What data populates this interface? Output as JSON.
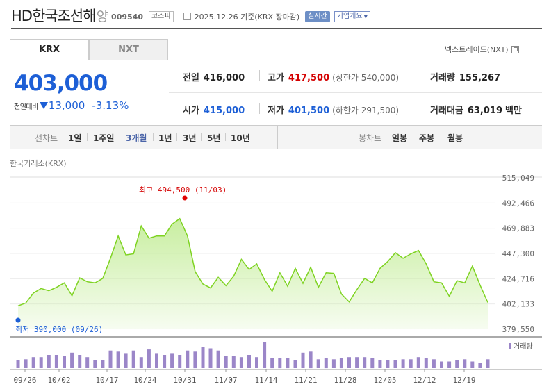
{
  "header": {
    "name": "HD한국조선해",
    "name_suffix": "양",
    "code": "009540",
    "market": "코스피",
    "date_text": "2025.12.26  기준(KRX 장마감)",
    "realtime_label": "실시간",
    "company_label": "기업개요"
  },
  "tabs": {
    "krx": "KRX",
    "nxt": "NXT",
    "nxt_link": "넥스트레이드(NXT)"
  },
  "quote": {
    "price": "403,000",
    "change_label": "전일대비",
    "change_amount": "13,000",
    "change_pct": "-3.13%",
    "prev_label": "전일",
    "prev_value": "416,000",
    "high_label": "고가",
    "high_value": "417,500",
    "upper_limit": "(상한가 540,000)",
    "volume_label": "거래량",
    "volume_value": "155,267",
    "open_label": "시가",
    "open_value": "415,000",
    "low_label": "저가",
    "low_value": "401,500",
    "lower_limit": "(하한가 291,500)",
    "amount_label": "거래대금",
    "amount_value": "63,019",
    "amount_unit": "백만"
  },
  "period_bar": {
    "line_chart_label": "선차트",
    "periods": [
      "1일",
      "1주일",
      "3개월",
      "1년",
      "3년",
      "5년",
      "10년"
    ],
    "active_period": "3개월",
    "candle_chart_label": "봉차트",
    "candle_periods": [
      "일봉",
      "주봉",
      "월봉"
    ]
  },
  "chart_caption": "한국거래소(KRX)",
  "chart_data": {
    "type": "area",
    "ylim": [
      379550,
      515049
    ],
    "yticks": [
      "515,049",
      "492,466",
      "469,883",
      "447,300",
      "424,716",
      "402,133",
      "379,550"
    ],
    "xticks": [
      "09/26",
      "10/02",
      "10/17",
      "10/24",
      "10/31",
      "11/07",
      "11/14",
      "11/21",
      "11/28",
      "12/05",
      "12/12",
      "12/19"
    ],
    "high_annotation": "최고 494,500 (11/03)",
    "low_annotation": "최저 390,000 (09/26)",
    "volume_legend": "거래량",
    "line_color": "#7ed321",
    "fill_color": "#c8eea0",
    "volume_color": "#9b86c8",
    "prices": [
      400500,
      403000,
      412000,
      416000,
      414000,
      417000,
      421000,
      409500,
      425500,
      422000,
      421000,
      425000,
      443000,
      463000,
      446000,
      447000,
      472000,
      461000,
      463000,
      463000,
      473500,
      478500,
      463000,
      431000,
      420000,
      416500,
      426000,
      418500,
      427000,
      442000,
      433000,
      438000,
      424000,
      413500,
      430000,
      418000,
      434000,
      420500,
      435000,
      417000,
      430000,
      429500,
      411000,
      404000,
      415000,
      425000,
      421000,
      434000,
      440000,
      448000,
      443000,
      447000,
      450000,
      438000,
      422000,
      421000,
      409000,
      423000,
      421000,
      436000,
      419000,
      403500
    ],
    "volumes": [
      7,
      8,
      10,
      10,
      12,
      12,
      11,
      14,
      12,
      10,
      7,
      7,
      16,
      15,
      13,
      16,
      10,
      17,
      13,
      12,
      13,
      12,
      16,
      15,
      19,
      18,
      16,
      11,
      11,
      10,
      12,
      10,
      24,
      9,
      9,
      9,
      7,
      14,
      15,
      8,
      9,
      8,
      9,
      10,
      10,
      10,
      9,
      7,
      7,
      7,
      8,
      8,
      10,
      9,
      8,
      6,
      6,
      7,
      8,
      6,
      5,
      8
    ]
  }
}
